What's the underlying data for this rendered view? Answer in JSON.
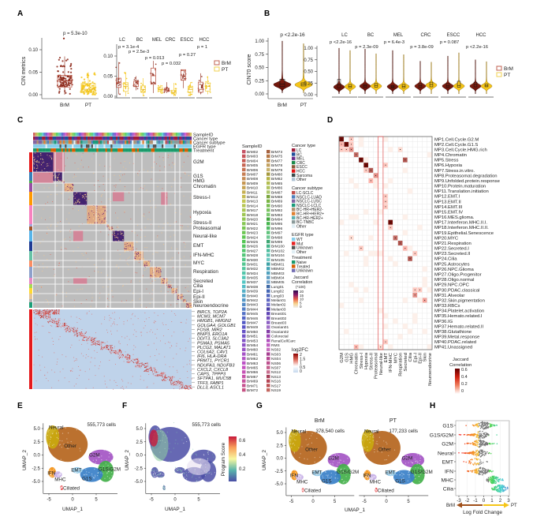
{
  "panel_labels": [
    "A",
    "B",
    "C",
    "D",
    "E",
    "F",
    "G",
    "H"
  ],
  "colors": {
    "BrM": "#8b2515",
    "PT": "#f5c518"
  },
  "panel_a": {
    "ylabel": "CIN metrics",
    "yticks": [
      0,
      0.05,
      0.1
    ],
    "ytick_labels": [
      "0.00",
      "0.05",
      "0.10"
    ],
    "groups": [
      "BrM",
      "PT"
    ],
    "p_overall": "p = 5.3e-10",
    "box_overall": {
      "BrM": {
        "lo": 0.0,
        "q1": 0.017,
        "med": 0.03,
        "q3": 0.043,
        "hi": 0.085
      },
      "PT": {
        "lo": 0.0,
        "q1": 0.005,
        "med": 0.012,
        "q3": 0.025,
        "hi": 0.05
      }
    },
    "facets": [
      {
        "name": "LC",
        "p": "p = 3.1e-4",
        "BrM": {
          "lo": 0.005,
          "q1": 0.022,
          "med": 0.035,
          "q3": 0.045,
          "hi": 0.085
        },
        "PT": {
          "lo": 0.0,
          "q1": 0.012,
          "med": 0.025,
          "q3": 0.034,
          "hi": 0.06
        }
      },
      {
        "name": "BC",
        "p": "p = 2.5e-3",
        "BrM": {
          "lo": 0.015,
          "q1": 0.024,
          "med": 0.03,
          "q3": 0.037,
          "hi": 0.05
        },
        "PT": {
          "lo": 0.0,
          "q1": 0.01,
          "med": 0.017,
          "q3": 0.026,
          "hi": 0.045
        }
      },
      {
        "name": "MEL",
        "p": "p = 0.013",
        "BrM": {
          "lo": 0.008,
          "q1": 0.03,
          "med": 0.051,
          "q3": 0.07,
          "hi": 0.088
        },
        "PT": {
          "lo": 0.008,
          "q1": 0.013,
          "med": 0.017,
          "q3": 0.021,
          "hi": 0.028
        }
      },
      {
        "name": "CRC",
        "p": "p = 0.032",
        "BrM": {
          "lo": 0.008,
          "q1": 0.012,
          "med": 0.016,
          "q3": 0.02,
          "hi": 0.035
        },
        "PT": {
          "lo": 0.0,
          "q1": 0.006,
          "med": 0.01,
          "q3": 0.015,
          "hi": 0.033
        }
      },
      {
        "name": "ESCC",
        "p": "p = 0.27",
        "BrM": {
          "lo": 0.02,
          "q1": 0.04,
          "med": 0.064,
          "q3": 0.066,
          "hi": 0.066
        },
        "PT": {
          "lo": 0.0,
          "q1": 0.01,
          "med": 0.017,
          "q3": 0.025,
          "hi": 0.035
        }
      },
      {
        "name": "HCC",
        "p": "p = 1",
        "BrM": {
          "lo": 0.005,
          "q1": 0.01,
          "med": 0.017,
          "q3": 0.035,
          "hi": 0.057
        },
        "PT": {
          "lo": 0.005,
          "q1": 0.013,
          "med": 0.025,
          "q3": 0.033,
          "hi": 0.05
        }
      }
    ],
    "legend": [
      "BrM",
      "PT"
    ]
  },
  "panel_b": {
    "ylabel": "CIN70 score",
    "yticks": [
      0,
      0.25,
      0.5,
      0.75,
      1.0
    ],
    "ytick_labels": [
      "0.00",
      "0.25",
      "0.50",
      "0.75",
      "1.00"
    ],
    "groups": [
      "BrM",
      "PT"
    ],
    "p_overall": "p <2.2e-16",
    "violin_overall": {
      "BrM": {
        "mode": 0.17,
        "q1": 0.14,
        "med": 0.19,
        "q3": 0.28,
        "top": 1.0
      },
      "PT": {
        "mode": 0.17,
        "q1": 0.15,
        "med": 0.18,
        "q3": 0.21,
        "top": 0.95
      }
    },
    "facets": [
      {
        "name": "LC",
        "p": "p <2.2e-16",
        "BrM": {
          "mode": 0.16,
          "q1": 0.15,
          "med": 0.21,
          "q3": 0.33,
          "top": 1.0
        },
        "PT": {
          "mode": 0.17,
          "q1": 0.15,
          "med": 0.18,
          "q3": 0.22,
          "top": 0.95
        }
      },
      {
        "name": "BC",
        "p": "p = 2.3e-09",
        "BrM": {
          "mode": 0.18,
          "q1": 0.16,
          "med": 0.19,
          "q3": 0.22,
          "top": 0.98
        },
        "PT": {
          "mode": 0.18,
          "q1": 0.16,
          "med": 0.2,
          "q3": 0.24,
          "top": 0.88
        }
      },
      {
        "name": "MEL",
        "p": "p = 6.4e-3",
        "BrM": {
          "mode": 0.17,
          "q1": 0.15,
          "med": 0.17,
          "q3": 0.2,
          "top": 0.95
        },
        "PT": {
          "mode": 0.17,
          "q1": 0.15,
          "med": 0.18,
          "q3": 0.22,
          "top": 0.86
        }
      },
      {
        "name": "CRC",
        "p": "p = 3.8e-09",
        "BrM": {
          "mode": 0.18,
          "q1": 0.16,
          "med": 0.2,
          "q3": 0.24,
          "top": 0.72
        },
        "PT": {
          "mode": 0.2,
          "q1": 0.17,
          "med": 0.22,
          "q3": 0.27,
          "top": 0.7
        }
      },
      {
        "name": "ESCC",
        "p": "p = 0.087",
        "BrM": {
          "mode": 0.18,
          "q1": 0.16,
          "med": 0.19,
          "q3": 0.24,
          "top": 0.83
        },
        "PT": {
          "mode": 0.18,
          "q1": 0.16,
          "med": 0.2,
          "q3": 0.29,
          "top": 0.9
        }
      },
      {
        "name": "HCC",
        "p": "p <2.2e-16",
        "BrM": {
          "mode": 0.18,
          "q1": 0.17,
          "med": 0.22,
          "q3": 0.27,
          "top": 0.75
        },
        "PT": {
          "mode": 0.18,
          "q1": 0.17,
          "med": 0.19,
          "q3": 0.23,
          "top": 0.71
        }
      }
    ],
    "legend": [
      "BrM",
      "PT"
    ]
  },
  "panel_c": {
    "annotation_rows": [
      "SampleID",
      "Cancer type",
      "Cancer subtype",
      "EGFR type",
      "Treatment"
    ],
    "programs": [
      {
        "name": "G2M",
        "color": "#e41a1c"
      },
      {
        "name": "G1S",
        "color": "#377eb8"
      },
      {
        "name": "HMG",
        "color": "#4daf4a"
      },
      {
        "name": "Chromatin",
        "color": "#984ea3"
      },
      {
        "name": "Stress-I",
        "color": "#ff9900"
      },
      {
        "name": "Hypoxia",
        "color": "#f781bf"
      },
      {
        "name": "Stress-II",
        "color": "#a6a6d8"
      },
      {
        "name": "Proteasomal",
        "color": "#a65628"
      },
      {
        "name": "Neural-like",
        "color": "#56b4e9"
      },
      {
        "name": "EMT",
        "color": "#1f3a93"
      },
      {
        "name": "IFN-MHC",
        "color": "#66c2a5"
      },
      {
        "name": "MYC",
        "color": "#fc8d62"
      },
      {
        "name": "Respiration",
        "color": "#8da0cb"
      },
      {
        "name": "Secreted",
        "color": "#e78ac3"
      },
      {
        "name": "Cilia",
        "color": "#a6d854"
      },
      {
        "name": "Epi-I",
        "color": "#ffd92f"
      },
      {
        "name": "Epi-II",
        "color": "#e5c494"
      },
      {
        "name": "Skin",
        "color": "#b3b3b3"
      },
      {
        "name": "Neuroendocrine",
        "color": "#1b9e77"
      }
    ],
    "genes": [
      "BIRC5, TOP2A",
      "MCM3, MCM7",
      "HMGB1, HMGN2",
      "GOLGA4, GOLGB1",
      "FOSB, MIR2",
      "BNIP3, ERO1A",
      "DDIT3, SLC3A2",
      "PSMA3, PSMA5",
      "PLCG2, MALAT1",
      "COL6A2, CAV1",
      "IFI6, HLA-DRA",
      "PRMT1, PYCR1",
      "NDUFA3, NDUFB3",
      "CXCL2, CXCL8",
      "CAPS, TPPP3",
      "SFTPA1, MUC5B",
      "TFF3, FABP1",
      "DLL3, ASCL1"
    ],
    "sample_legend": {
      "title": "SampleID",
      "col1": [
        "BrM02",
        "BrM03",
        "BrM04",
        "BrM05",
        "BrM06",
        "BrM07",
        "BrM08",
        "BrM09",
        "BrM10",
        "BrM11",
        "BrM12",
        "BrM13",
        "BrM14",
        "BrM17",
        "BrM18",
        "BrM20",
        "BrM21",
        "BrM22",
        "BrM23",
        "BrM24",
        "BrM25",
        "BrM26",
        "BrM27",
        "BrM28",
        "BrM30",
        "BrM31",
        "BrM32",
        "BrM34",
        "BrM35",
        "BrM37",
        "BrM38",
        "BrM39",
        "BrM40",
        "BrM42",
        "BrM43",
        "BrM44",
        "BrM45",
        "BrM46",
        "BrM47",
        "BrM49",
        "BrM50",
        "BrM51",
        "BrM53",
        "BrM54",
        "BrM60",
        "BrM61",
        "BrM62",
        "BrM63",
        "BrM65",
        "BrM66",
        "BrM67",
        "BrM69",
        "BrM71",
        "BrM72"
      ],
      "col2": [
        "BrM73",
        "BrM75",
        "BrM77",
        "BrM78",
        "BrM79",
        "BrM80",
        "BrM82",
        "BrM85",
        "BrM86",
        "BrM87",
        "BrM88",
        "BrM89",
        "BrM90",
        "BrM92",
        "BrM93",
        "BrM94",
        "BrM95",
        "BrM96",
        "BrM97",
        "BrM98",
        "BrM99",
        "BrM100",
        "BrM102",
        "BrM104",
        "BrM105",
        "MBM01",
        "MBM02",
        "MBM03",
        "MBM04",
        "MBM05",
        "Lung01",
        "Lung02",
        "Lung03",
        "Melan01",
        "Melan02",
        "Melan03",
        "Breast01",
        "Breast02",
        "Breast03",
        "Ovarian01",
        "Ovarian02",
        "Colorectal",
        "RenalCellCarc",
        "RMS",
        "NS02",
        "NS03",
        "NS04",
        "NS06",
        "NS07",
        "NS12",
        "NS13",
        "NS16",
        "NS17",
        "NS19"
      ]
    },
    "cancer_type": {
      "title": "Cancer type",
      "items": [
        {
          "label": "LC",
          "color": "#a01c3a"
        },
        {
          "label": "BC",
          "color": "#1f4e9a"
        },
        {
          "label": "MEL",
          "color": "#6a2a8a"
        },
        {
          "label": "CRC",
          "color": "#1a8a4a"
        },
        {
          "label": "ESCC",
          "color": "#8a5a3a"
        },
        {
          "label": "HCC",
          "color": "#e01010"
        },
        {
          "label": "Sarcoma",
          "color": "#3a4a4a"
        },
        {
          "label": "Other",
          "color": "#b0c4d4"
        }
      ]
    },
    "cancer_subtype": {
      "title": "Cancer subtype",
      "items": [
        {
          "label": "LC-SCLC",
          "color": "#c0504d"
        },
        {
          "label": "NSCLC-LUAD",
          "color": "#4f81bd"
        },
        {
          "label": "NSCLC-LUSC",
          "color": "#8064a2"
        },
        {
          "label": "NSCLC-LCLC",
          "color": "#1a9a7a"
        },
        {
          "label": "BC-HR+HER2-",
          "color": "#b09070"
        },
        {
          "label": "BC-HR+HER2+",
          "color": "#e08030"
        },
        {
          "label": "BC-HR-HER2+",
          "color": "#60b0b0"
        },
        {
          "label": "BC-TNBC",
          "color": "#8a9a9a"
        },
        {
          "label": "Other",
          "color": "#e0eef4"
        }
      ]
    },
    "egfr_type": {
      "title": "EGFR type",
      "items": [
        {
          "label": "WT",
          "color": "#87ceeb"
        },
        {
          "label": "Mut",
          "color": "#e82020"
        },
        {
          "label": "Unknown",
          "color": "#555555"
        },
        {
          "label": "Other",
          "color": "#e0eef4"
        }
      ]
    },
    "treatment": {
      "title": "Treatment",
      "items": [
        {
          "label": "Naive",
          "color": "#1a9a6a"
        },
        {
          "label": "Treated",
          "color": "#d95f02"
        },
        {
          "label": "Unknown",
          "color": "#7570b3"
        }
      ]
    },
    "jaccard_legend": {
      "title1": "Jaccard",
      "title2": "Correlation",
      "title3": "(*100)",
      "ticks": [
        "20",
        "15",
        "10",
        "5",
        "0"
      ]
    },
    "log2fc_legend": {
      "title": "log2FC",
      "ticks": [
        "2",
        "1.5",
        "1",
        "0.5",
        "0"
      ]
    }
  },
  "panel_d": {
    "rows": [
      "MP1.Cell.Cycle.G2.M",
      "MP2.Cell.Cycle.G1.S",
      "MP3.Cell.Cycle.HMG.rich",
      "MP4.Chromatin",
      "MP5.Stress",
      "MP6.Hypoxia",
      "MP7.Stress.in.vitro.",
      "MP8.Proteasomal.degradation",
      "MP9.Unfolded.protein.response",
      "MP10.Protein.maturation",
      "MP11.Translation.initiation",
      "MP12.EMT.I",
      "MP13.EMT.II",
      "MP14.EMT.III",
      "MP15.EMT.IV",
      "MP16.MES.glioma.",
      "MP17.Interferon.MHC.II.I.",
      "MP18.Interferon.MHC.II.II.",
      "MP19.Epithelial.Senescence",
      "MP20.MYC",
      "MP21.Respiration",
      "MP22.Secreted.I",
      "MP23.Secreted.II",
      "MP24.Cilia",
      "MP25.Astrocytes",
      "MP26.NPC.Glioma",
      "MP27.Oligo.Progenitor",
      "MP28.Oligo.normal",
      "MP29.NPC.OPC",
      "MP30.PDAC.classical",
      "MP31.Alveolar",
      "MP32.Skin.pigmentation",
      "MP33.RBCs",
      "MP34.Platelet.activation",
      "MP35.Hemato.related.I",
      "MP36.IG",
      "MP37.Hemato.related.II",
      "MP38.Glutathione",
      "MP39.Metal.response",
      "MP40.PDAC.related",
      "MP41.Unassigned"
    ],
    "columns": [
      "G2M",
      "G1S",
      "HMG",
      "Chromatin",
      "Stress-I",
      "Hypoxia",
      "Stress-II",
      "Proteasomal",
      "Neural-like",
      "EMT",
      "IFN-MHC",
      "MYC",
      "Respiration",
      "Secreted",
      "Cilia",
      "Epi-I",
      "Epi-II",
      "Skin",
      "Neuroendocrine"
    ],
    "highlight_column": "Neural-like",
    "cells": [
      [
        1,
        1,
        0.6
      ],
      [
        1,
        3,
        0.1
      ],
      [
        2,
        1,
        0.15
      ],
      [
        2,
        2,
        0.6
      ],
      [
        2,
        3,
        0.1
      ],
      [
        3,
        1,
        0.1
      ],
      [
        3,
        2,
        0.1
      ],
      [
        3,
        3,
        0.25
      ],
      [
        3,
        13,
        0.05
      ],
      [
        4,
        4,
        0.35
      ],
      [
        5,
        5,
        0.6
      ],
      [
        5,
        14,
        0.4
      ],
      [
        6,
        6,
        0.6
      ],
      [
        6,
        10,
        0.1
      ],
      [
        7,
        6,
        0.1
      ],
      [
        7,
        7,
        0.4
      ],
      [
        8,
        8,
        0.25
      ],
      [
        9,
        7,
        0.15
      ],
      [
        12,
        10,
        0.1
      ],
      [
        13,
        10,
        0.1
      ],
      [
        14,
        10,
        0.1
      ],
      [
        17,
        11,
        0.6
      ],
      [
        18,
        11,
        0.1
      ],
      [
        20,
        3,
        0.05
      ],
      [
        20,
        12,
        0.35
      ],
      [
        21,
        13,
        0.4
      ],
      [
        22,
        5,
        0.1
      ],
      [
        22,
        14,
        0.15
      ],
      [
        23,
        16,
        0.1
      ],
      [
        24,
        15,
        0.4
      ],
      [
        30,
        16,
        0.1
      ],
      [
        30,
        17,
        0.1
      ],
      [
        31,
        16,
        0.25
      ],
      [
        32,
        18,
        0.2
      ],
      [
        40,
        10,
        0.1
      ],
      [
        41,
        4,
        0.15
      ],
      [
        41,
        9,
        0.05
      ]
    ],
    "legend_title1": "Jaccard",
    "legend_title2": "Correlation",
    "legend_ticks": [
      "0.6",
      "0.4",
      "0.2",
      "0"
    ]
  },
  "umap": {
    "xlabel": "UMAP_1",
    "ylabel": "UMAP_2",
    "xticks": [
      "-5",
      "0",
      "5"
    ],
    "yticks": [
      "5.0",
      "2.5",
      "0.0",
      "-2.5",
      "-5.0"
    ],
    "clusters": [
      {
        "name": "Other",
        "color": "#b5651d"
      },
      {
        "name": "Neural",
        "color": "#c9a80e"
      },
      {
        "name": "G2M",
        "color": "#a455c4"
      },
      {
        "name": "G1S/G2M",
        "color": "#43b04a"
      },
      {
        "name": "G1S",
        "color": "#3a80c8"
      },
      {
        "name": "EMT",
        "color": "#8ec8e8"
      },
      {
        "name": "IFN",
        "color": "#f39012"
      },
      {
        "name": "MHC",
        "color": "#c6aee6"
      },
      {
        "name": "Ciliated",
        "color": "#e41a1c"
      }
    ]
  },
  "panel_e": {
    "cells": "555,773 cells"
  },
  "panel_f": {
    "cells": "555,773 cells",
    "colorbar_title": "Program Score",
    "colorbar_ticks": [
      "0.6",
      "0.4",
      "0.2"
    ]
  },
  "panel_g": {
    "facets": [
      {
        "title": "BrM",
        "cells": "378,540 cells"
      },
      {
        "title": "PT",
        "cells": "177,233 cells"
      }
    ]
  },
  "panel_h": {
    "categories": [
      "G1S",
      "G1S/G2M",
      "G2M",
      "Neural",
      "EMT",
      "IFN",
      "MHC",
      "Cilia"
    ],
    "center_lfc": [
      0.0,
      -0.3,
      -0.5,
      -0.5,
      -1.0,
      -0.3,
      1.2,
      2.0
    ],
    "xticks": [
      "-3",
      "-2",
      "-1",
      "0",
      "1",
      "2",
      "3"
    ],
    "xlabel": "Log Fold Change",
    "left_label": "BrM",
    "right_label": "PT"
  }
}
